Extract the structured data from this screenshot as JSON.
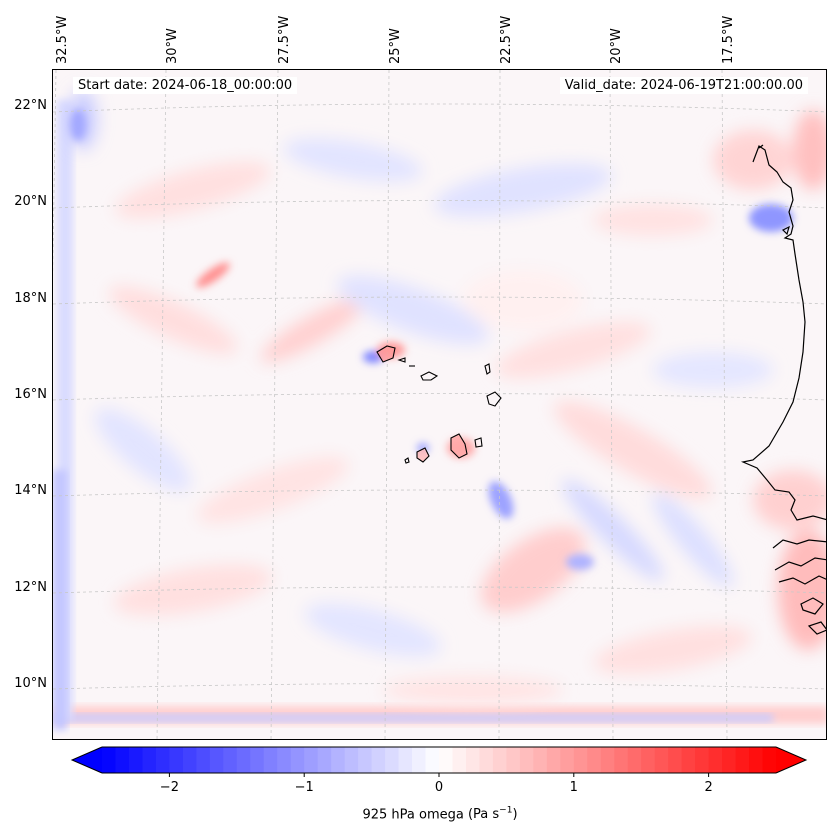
{
  "map": {
    "start_date": "Start date: 2024-06-18_00:00:00",
    "valid_date": "Valid_date: 2024-06-19T21:00:00.00",
    "lon_labels": [
      "32.5°W",
      "30°W",
      "27.5°W",
      "25°W",
      "22.5°W",
      "20°W",
      "17.5°W"
    ],
    "lat_labels": [
      "22°N",
      "20°N",
      "18°N",
      "16°N",
      "14°N",
      "12°N",
      "10°N"
    ],
    "variable": "925 hPa omega",
    "units_prefix": "(Pa s",
    "units_sup": "−1",
    "units_suffix": ")"
  },
  "colorbar": {
    "min": -2.5,
    "max": 2.5,
    "tick_labels": [
      "−2",
      "−1",
      "0",
      "1",
      "2"
    ],
    "tick_values": [
      -2,
      -1,
      0,
      1,
      2
    ],
    "colors": {
      "negative": "#0000ff",
      "zero": "#ffffff",
      "positive": "#ff0000"
    }
  }
}
